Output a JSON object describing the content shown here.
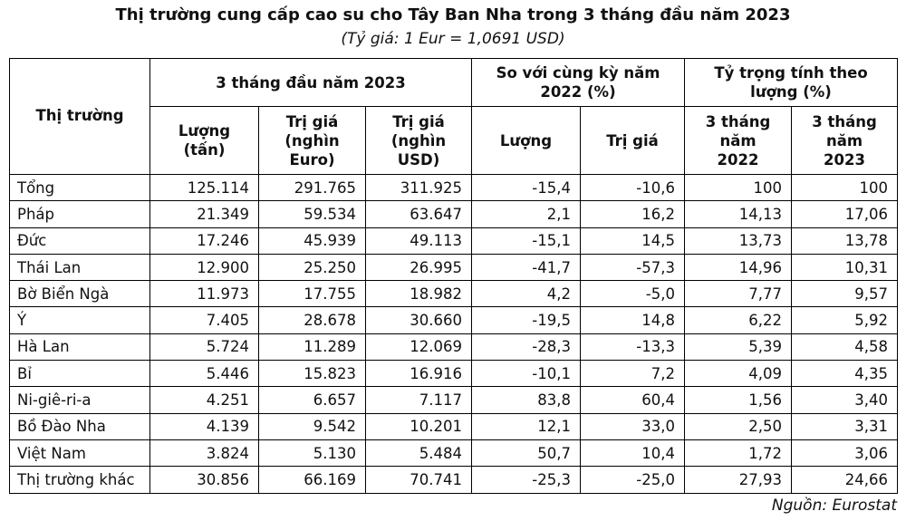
{
  "title": "Thị trường cung cấp cao su cho Tây Ban Nha trong 3 tháng đầu năm 2023",
  "subtitle": "(Tỷ giá: 1 Eur = 1,0691 USD)",
  "table": {
    "header": {
      "market": "Thị trường",
      "group1": "3 tháng đầu năm 2023",
      "group2": "So với cùng kỳ năm 2022 (%)",
      "group3": "Tỷ trọng tính theo lượng (%)",
      "columns": [
        "Lượng (tấn)",
        "Trị giá (nghìn Euro)",
        "Trị giá (nghìn USD)",
        "Lượng",
        "Trị giá",
        "3 tháng năm 2022",
        "3 tháng năm 2023"
      ]
    },
    "rows": [
      [
        "Tổng",
        "125.114",
        "291.765",
        "311.925",
        "-15,4",
        "-10,6",
        "100",
        "100"
      ],
      [
        "Pháp",
        "21.349",
        "59.534",
        "63.647",
        "2,1",
        "16,2",
        "14,13",
        "17,06"
      ],
      [
        "Đức",
        "17.246",
        "45.939",
        "49.113",
        "-15,1",
        "14,5",
        "13,73",
        "13,78"
      ],
      [
        "Thái Lan",
        "12.900",
        "25.250",
        "26.995",
        "-41,7",
        "-57,3",
        "14,96",
        "10,31"
      ],
      [
        "Bờ Biển Ngà",
        "11.973",
        "17.755",
        "18.982",
        "4,2",
        "-5,0",
        "7,77",
        "9,57"
      ],
      [
        "Ý",
        "7.405",
        "28.678",
        "30.660",
        "-19,5",
        "14,8",
        "6,22",
        "5,92"
      ],
      [
        "Hà Lan",
        "5.724",
        "11.289",
        "12.069",
        "-28,3",
        "-13,3",
        "5,39",
        "4,58"
      ],
      [
        "Bỉ",
        "5.446",
        "15.823",
        "16.916",
        "-10,1",
        "7,2",
        "4,09",
        "4,35"
      ],
      [
        "Ni-giê-ri-a",
        "4.251",
        "6.657",
        "7.117",
        "83,8",
        "60,4",
        "1,56",
        "3,40"
      ],
      [
        "Bồ Đào Nha",
        "4.139",
        "9.542",
        "10.201",
        "12,1",
        "33,0",
        "2,50",
        "3,31"
      ],
      [
        "Việt Nam",
        "3.824",
        "5.130",
        "5.484",
        "50,7",
        "10,4",
        "1,72",
        "3,06"
      ],
      [
        "Thị trường khác",
        "30.856",
        "66.169",
        "70.741",
        "-25,3",
        "-25,0",
        "27,93",
        "24,66"
      ]
    ]
  },
  "source": "Nguồn: Eurostat"
}
